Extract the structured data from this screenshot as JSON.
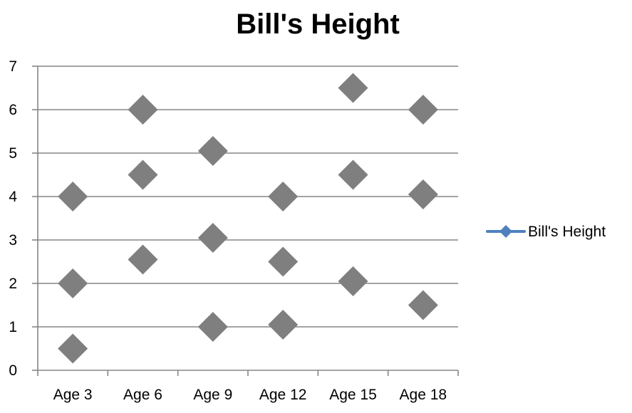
{
  "chart_data": {
    "type": "scatter",
    "title": "Bill's Height",
    "xlabel": "",
    "ylabel": "",
    "categories": [
      "Age 3",
      "Age 6",
      "Age 9",
      "Age 12",
      "Age 15",
      "Age 18"
    ],
    "ylim": [
      0,
      7
    ],
    "y_ticks": [
      "0",
      "1",
      "2",
      "3",
      "4",
      "5",
      "6",
      "7"
    ],
    "grid": true,
    "legend_position": "right",
    "marker_color": "#7f7f7f",
    "legend_line_color": "#4f81bd",
    "series": [
      {
        "name": "Bill's Height",
        "points": [
          {
            "category": "Age 3",
            "y": 4.0
          },
          {
            "category": "Age 3",
            "y": 2.0
          },
          {
            "category": "Age 3",
            "y": 0.5
          },
          {
            "category": "Age 6",
            "y": 6.0
          },
          {
            "category": "Age 6",
            "y": 4.5
          },
          {
            "category": "Age 6",
            "y": 2.55
          },
          {
            "category": "Age 9",
            "y": 5.05
          },
          {
            "category": "Age 9",
            "y": 3.05
          },
          {
            "category": "Age 9",
            "y": 1.0
          },
          {
            "category": "Age 12",
            "y": 4.0
          },
          {
            "category": "Age 12",
            "y": 2.5
          },
          {
            "category": "Age 12",
            "y": 1.05
          },
          {
            "category": "Age 15",
            "y": 6.5
          },
          {
            "category": "Age 15",
            "y": 4.5
          },
          {
            "category": "Age 15",
            "y": 2.05
          },
          {
            "category": "Age 18",
            "y": 6.0
          },
          {
            "category": "Age 18",
            "y": 4.05
          },
          {
            "category": "Age 18",
            "y": 1.5
          }
        ]
      }
    ]
  }
}
